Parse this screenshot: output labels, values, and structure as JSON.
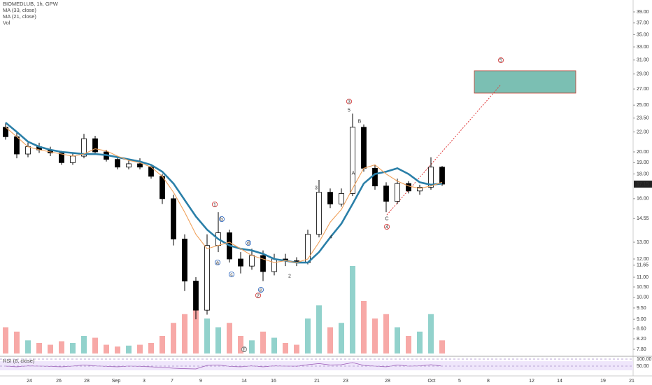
{
  "chart_data": {
    "type": "candlestick",
    "legend": [
      "BIOMEDLUB, 1h, GPW",
      "MA (33, close)",
      "MA (21, close)",
      "Vol"
    ],
    "rsi_label": "RSI (8, close)",
    "log_scale": true,
    "ylim": [
      7.8,
      39
    ],
    "yticks": [
      {
        "value": 39,
        "label": "39.00"
      },
      {
        "value": 37,
        "label": "37.00"
      },
      {
        "value": 35,
        "label": "35.00"
      },
      {
        "value": 33,
        "label": "33.00"
      },
      {
        "value": 31,
        "label": "31.00"
      },
      {
        "value": 29,
        "label": "29.00"
      },
      {
        "value": 27,
        "label": "27.00"
      },
      {
        "value": 25,
        "label": "25.00"
      },
      {
        "value": 23.5,
        "label": "23.50"
      },
      {
        "value": 22,
        "label": "22.00"
      },
      {
        "value": 20,
        "label": "20.00"
      },
      {
        "value": 19,
        "label": "19.00"
      },
      {
        "value": 18,
        "label": "18.00"
      },
      {
        "value": 16,
        "label": "16.00"
      },
      14.55,
      {
        "value": 13,
        "label": "13.00"
      },
      {
        "value": 12,
        "label": "12.00"
      },
      11.65,
      {
        "value": 11,
        "label": "11.00"
      },
      {
        "value": 10.5,
        "label": "10.50"
      },
      {
        "value": 10,
        "label": "10.00"
      },
      {
        "value": 9.5,
        "label": "9.50"
      },
      {
        "value": 9,
        "label": "9.00"
      },
      {
        "value": 8.6,
        "label": "8.60"
      },
      {
        "value": 8.2,
        "label": "8.20"
      },
      {
        "value": 7.8,
        "label": "7.80"
      }
    ],
    "xtick_labels": [
      "24",
      "26",
      "28",
      "Sep",
      "3",
      "7",
      "9",
      "14",
      "16",
      "21",
      "23",
      "28",
      "Oct",
      "5",
      "8",
      "12",
      "14",
      "19",
      "21"
    ],
    "open": [
      22.5,
      21.5,
      19.8,
      20.5,
      20.2,
      19.9,
      19.0,
      19.6,
      21.3,
      20.0,
      19.3,
      18.6,
      18.9,
      18.6,
      17.8,
      16.0,
      13.2,
      10.8,
      9.4,
      12.8,
      13.6,
      12.0,
      11.6,
      12.2,
      11.3,
      12.0,
      11.9,
      11.8,
      13.5,
      16.5,
      15.6,
      16.4,
      22.5,
      18.5,
      17.0,
      15.8,
      17.2,
      16.6,
      16.9,
      18.6
    ],
    "high": [
      23.0,
      22.0,
      20.9,
      20.9,
      20.5,
      20.1,
      19.9,
      21.8,
      21.6,
      20.2,
      19.5,
      19.3,
      19.4,
      18.8,
      18.0,
      16.3,
      13.5,
      11.0,
      13.5,
      15.0,
      13.8,
      12.4,
      12.6,
      12.5,
      12.3,
      12.3,
      12.1,
      13.8,
      17.5,
      16.8,
      16.8,
      24.0,
      22.8,
      18.8,
      17.3,
      17.6,
      17.4,
      17.1,
      19.5,
      18.7
    ],
    "low": [
      21.2,
      19.4,
      19.5,
      19.9,
      19.6,
      18.8,
      18.8,
      19.4,
      19.8,
      19.1,
      18.4,
      18.4,
      18.4,
      17.6,
      15.6,
      12.8,
      10.3,
      9.0,
      9.2,
      12.4,
      11.8,
      11.2,
      11.4,
      10.8,
      11.1,
      11.6,
      11.6,
      11.7,
      13.3,
      15.3,
      15.4,
      16.2,
      18.2,
      16.7,
      15.0,
      15.6,
      16.4,
      16.3,
      16.7,
      17.0
    ],
    "close": [
      21.5,
      19.8,
      20.5,
      20.2,
      19.9,
      19.0,
      19.6,
      21.3,
      20.0,
      19.3,
      18.6,
      18.9,
      18.6,
      17.8,
      16.0,
      13.2,
      10.8,
      9.4,
      12.8,
      13.6,
      12.0,
      11.6,
      12.2,
      11.3,
      12.0,
      11.9,
      11.8,
      13.5,
      16.5,
      15.6,
      16.4,
      22.5,
      18.5,
      17.0,
      15.8,
      17.2,
      16.6,
      16.9,
      18.6,
      17.15
    ],
    "series": [
      {
        "name": "MA (33, close)",
        "color": "#2a7fa8",
        "values": [
          23.0,
          22.0,
          21.0,
          20.5,
          20.2,
          20.0,
          19.9,
          19.8,
          19.8,
          19.7,
          19.5,
          19.3,
          19.1,
          18.8,
          18.2,
          17.2,
          15.9,
          14.7,
          13.8,
          13.2,
          12.8,
          12.6,
          12.5,
          12.3,
          12.0,
          11.9,
          11.8,
          11.8,
          12.4,
          13.3,
          14.2,
          15.6,
          17.2,
          18.0,
          18.2,
          18.5,
          18.0,
          17.3,
          17.1,
          17.2
        ]
      },
      {
        "name": "MA (21, close)",
        "color": "#f0a05a",
        "values": [
          22.5,
          21.5,
          20.5,
          20.2,
          20.0,
          19.8,
          19.6,
          19.8,
          20.3,
          20.1,
          19.6,
          19.2,
          19.0,
          18.6,
          17.8,
          16.5,
          15.0,
          13.5,
          12.6,
          12.8,
          13.0,
          12.6,
          12.2,
          12.0,
          11.8,
          11.9,
          11.8,
          12.0,
          13.0,
          14.3,
          15.2,
          16.8,
          18.5,
          18.8,
          18.0,
          17.4,
          17.0,
          16.8,
          17.0,
          17.3
        ]
      }
    ],
    "volume": [
      30,
      25,
      15,
      12,
      10,
      14,
      12,
      20,
      18,
      10,
      8,
      9,
      10,
      12,
      20,
      35,
      45,
      50,
      40,
      30,
      35,
      20,
      15,
      25,
      18,
      12,
      10,
      40,
      55,
      30,
      35,
      100,
      60,
      40,
      45,
      30,
      20,
      25,
      45,
      15
    ],
    "vlim": [
      0,
      100
    ],
    "rsi": [
      50,
      45,
      52,
      50,
      48,
      45,
      50,
      58,
      52,
      48,
      45,
      50,
      48,
      45,
      40,
      35,
      32,
      30,
      55,
      58,
      48,
      45,
      52,
      45,
      52,
      50,
      49,
      60,
      68,
      58,
      60,
      75,
      55,
      50,
      45,
      58,
      50,
      52,
      60,
      50
    ],
    "rsi_ylim": [
      0,
      100
    ],
    "rsi_yticks": [
      {
        "value": 100,
        "label": "100.00"
      },
      {
        "value": 50,
        "label": "50.00"
      }
    ],
    "annotations": [
      "1",
      "2",
      "3",
      "4",
      "5",
      "A",
      "B",
      "C",
      "5",
      "3",
      "4",
      "2",
      "b",
      "a",
      "c",
      "d",
      "e",
      "E"
    ]
  }
}
